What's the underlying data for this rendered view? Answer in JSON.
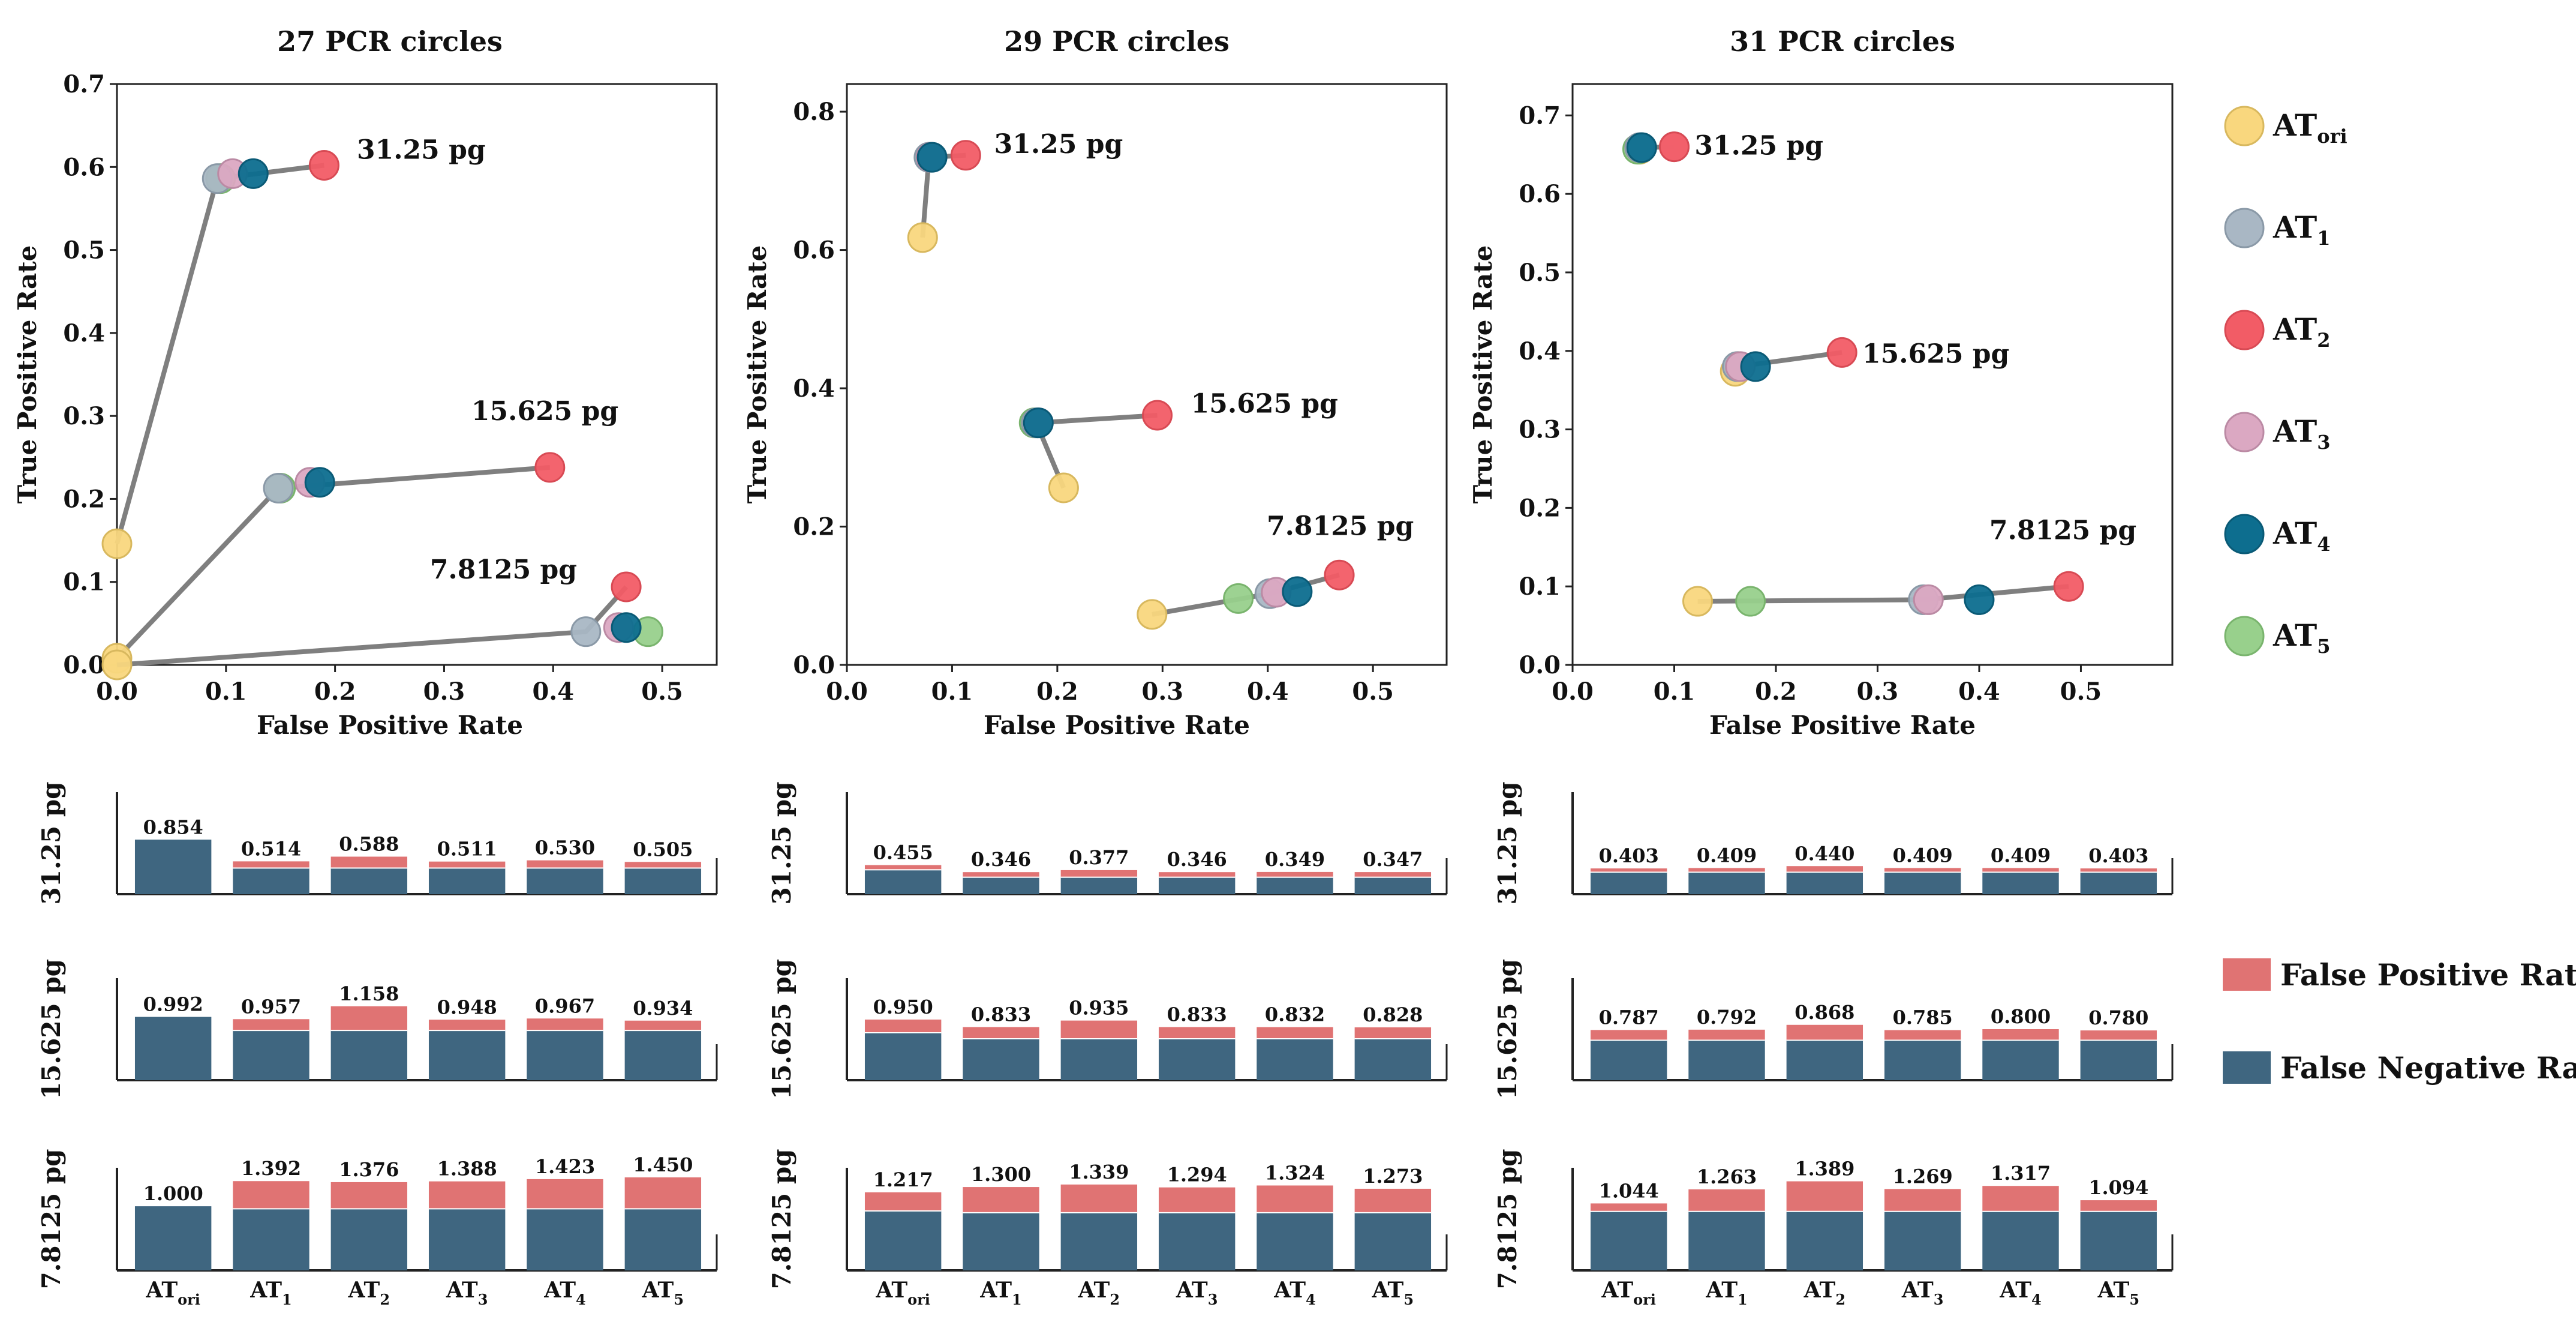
{
  "chart_data": {
    "type": "scatter",
    "legend": {
      "items": [
        {
          "main": "AT",
          "sub": "ori",
          "color": "#f9d77e",
          "stroke": "#d8b85e"
        },
        {
          "main": "AT",
          "sub": "1",
          "color": "#a9b7c4",
          "stroke": "#8a99a7"
        },
        {
          "main": "AT",
          "sub": "2",
          "color": "#f25c66",
          "stroke": "#d84a54"
        },
        {
          "main": "AT",
          "sub": "3",
          "color": "#dba8c2",
          "stroke": "#bb8aa4"
        },
        {
          "main": "AT",
          "sub": "4",
          "color": "#0d6e8f",
          "stroke": "#0a5a76"
        },
        {
          "main": "AT",
          "sub": "5",
          "color": "#98d08c",
          "stroke": "#79b46d"
        }
      ],
      "bar_items": [
        {
          "label": "False Positive Rate",
          "color": "#e07373"
        },
        {
          "label": "False Negative Rate",
          "color": "#3f6680"
        }
      ]
    },
    "bar_categories": [
      {
        "main": "AT",
        "sub": "ori"
      },
      {
        "main": "AT",
        "sub": "1"
      },
      {
        "main": "AT",
        "sub": "2"
      },
      {
        "main": "AT",
        "sub": "3"
      },
      {
        "main": "AT",
        "sub": "4"
      },
      {
        "main": "AT",
        "sub": "5"
      }
    ],
    "bar_row_labels": [
      "31.25 pg",
      "15.625 pg",
      "7.8125 pg"
    ],
    "bar_ylim": [
      0,
      1.6
    ],
    "panels": [
      {
        "title": "27 PCR circles",
        "xlabel": "False Positive Rate",
        "ylabel": "True Positive Rate",
        "xlim": [
          0,
          0.55
        ],
        "ylim": [
          0,
          0.7
        ],
        "xticks": [
          "0.0",
          "0.1",
          "0.2",
          "0.3",
          "0.4",
          "0.5"
        ],
        "yticks": [
          "0.0",
          "0.1",
          "0.2",
          "0.3",
          "0.4",
          "0.5",
          "0.6",
          "0.7"
        ],
        "groups": [
          {
            "label": "31.25 pg",
            "label_at": [
              0.22,
              0.61
            ],
            "points": [
              [
                0.0,
                0.146
              ],
              [
                0.092,
                0.586
              ],
              [
                0.106,
                0.592
              ],
              [
                0.1,
                0.592
              ],
              [
                0.125,
                0.592
              ],
              [
                0.095,
                0.586
              ],
              [
                0.19,
                0.602
              ]
            ]
          },
          {
            "label": "15.625 pg",
            "label_at": [
              0.325,
              0.295
            ],
            "points": [
              [
                0.0,
                0.008
              ],
              [
                0.148,
                0.213
              ],
              [
                0.177,
                0.22
              ],
              [
                0.17,
                0.22
              ],
              [
                0.186,
                0.22
              ],
              [
                0.15,
                0.213
              ],
              [
                0.397,
                0.238
              ]
            ]
          },
          {
            "label": "7.8125 pg",
            "label_at": [
              0.287,
              0.104
            ],
            "points": [
              [
                0.0,
                0.0
              ],
              [
                0.43,
                0.04
              ],
              [
                0.46,
                0.045
              ],
              [
                0.433,
                0.04
              ],
              [
                0.467,
                0.045
              ],
              [
                0.487,
                0.04
              ],
              [
                0.467,
                0.094
              ]
            ]
          }
        ]
      },
      {
        "title": "29 PCR circles",
        "xlabel": "False Positive Rate",
        "ylabel": "True Positive Rate",
        "xlim": [
          0,
          0.57
        ],
        "ylim": [
          0,
          0.84
        ],
        "xticks": [
          "0.0",
          "0.1",
          "0.2",
          "0.3",
          "0.4",
          "0.5"
        ],
        "yticks": [
          "0.0",
          "0.2",
          "0.4",
          "0.6",
          "0.8"
        ],
        "groups": [
          {
            "label": "31.25 pg",
            "label_at": [
              0.14,
              0.74
            ],
            "points": [
              [
                0.072,
                0.618
              ],
              [
                0.078,
                0.734
              ],
              [
                0.08,
                0.734
              ],
              [
                0.08,
                0.734
              ],
              [
                0.081,
                0.734
              ],
              [
                0.079,
                0.734
              ],
              [
                0.113,
                0.737
              ]
            ]
          },
          {
            "label": "15.625 pg",
            "label_at": [
              0.327,
              0.365
            ],
            "points": [
              [
                0.206,
                0.256
              ],
              [
                0.18,
                0.35
              ],
              [
                0.182,
                0.35
              ],
              [
                0.18,
                0.35
              ],
              [
                0.182,
                0.35
              ],
              [
                0.178,
                0.35
              ],
              [
                0.295,
                0.361
              ]
            ]
          },
          {
            "label": "7.8125 pg",
            "label_at": [
              0.399,
              0.188
            ],
            "points": [
              [
                0.29,
                0.073
              ],
              [
                0.402,
                0.103
              ],
              [
                0.408,
                0.105
              ],
              [
                0.402,
                0.103
              ],
              [
                0.428,
                0.106
              ],
              [
                0.372,
                0.096
              ],
              [
                0.468,
                0.13
              ]
            ]
          }
        ]
      },
      {
        "title": "31 PCR circles",
        "xlabel": "False Positive Rate",
        "ylabel": "True Positive Rate",
        "xlim": [
          0,
          0.59
        ],
        "ylim": [
          0,
          0.74
        ],
        "xticks": [
          "0.0",
          "0.1",
          "0.2",
          "0.3",
          "0.4",
          "0.5"
        ],
        "yticks": [
          "0.0",
          "0.1",
          "0.2",
          "0.3",
          "0.4",
          "0.5",
          "0.6",
          "0.7"
        ],
        "groups": [
          {
            "label": "31.25 pg",
            "label_at": [
              0.12,
              0.65
            ],
            "points": [
              [
                0.066,
                0.657
              ],
              [
                0.066,
                0.659
              ],
              [
                0.1,
                0.66
              ],
              [
                0.066,
                0.659
              ],
              [
                0.068,
                0.659
              ],
              [
                0.064,
                0.657
              ],
              [
                0.1,
                0.66
              ]
            ]
          },
          {
            "label": "15.625 pg",
            "label_at": [
              0.285,
              0.385
            ],
            "points": [
              [
                0.16,
                0.374
              ],
              [
                0.162,
                0.38
              ],
              [
                0.165,
                0.38
              ],
              [
                0.164,
                0.38
              ],
              [
                0.18,
                0.38
              ],
              [
                0.163,
                0.38
              ],
              [
                0.265,
                0.398
              ]
            ]
          },
          {
            "label": "7.8125 pg",
            "label_at": [
              0.41,
              0.16
            ],
            "points": [
              [
                0.123,
                0.081
              ],
              [
                0.345,
                0.083
              ],
              [
                0.35,
                0.083
              ],
              [
                0.348,
                0.083
              ],
              [
                0.4,
                0.083
              ],
              [
                0.175,
                0.081
              ],
              [
                0.488,
                0.1
              ]
            ]
          }
        ]
      }
    ],
    "bars": [
      [
        {
          "labels": [
            "0.854",
            "0.514",
            "0.588",
            "0.511",
            "0.530",
            "0.505"
          ],
          "fnr": [
            0.854,
            0.41,
            0.41,
            0.41,
            0.41,
            0.41
          ],
          "fpr": [
            0.0,
            0.104,
            0.178,
            0.101,
            0.12,
            0.095
          ]
        },
        {
          "labels": [
            "0.992",
            "0.957",
            "1.158",
            "0.948",
            "0.967",
            "0.934"
          ],
          "fnr": [
            0.992,
            0.78,
            0.78,
            0.78,
            0.78,
            0.78
          ],
          "fpr": [
            0.0,
            0.177,
            0.378,
            0.168,
            0.187,
            0.154
          ]
        },
        {
          "labels": [
            "1.000",
            "1.392",
            "1.376",
            "1.388",
            "1.423",
            "1.450"
          ],
          "fnr": [
            1.0,
            0.96,
            0.96,
            0.96,
            0.96,
            0.96
          ],
          "fpr": [
            0.0,
            0.432,
            0.416,
            0.428,
            0.463,
            0.49
          ]
        }
      ],
      [
        {
          "labels": [
            "0.455",
            "0.346",
            "0.377",
            "0.346",
            "0.349",
            "0.347"
          ],
          "fnr": [
            0.382,
            0.266,
            0.266,
            0.266,
            0.266,
            0.266
          ],
          "fpr": [
            0.073,
            0.08,
            0.111,
            0.08,
            0.083,
            0.081
          ]
        },
        {
          "labels": [
            "0.950",
            "0.833",
            "0.935",
            "0.833",
            "0.832",
            "0.828"
          ],
          "fnr": [
            0.744,
            0.65,
            0.65,
            0.65,
            0.65,
            0.65
          ],
          "fpr": [
            0.206,
            0.183,
            0.285,
            0.183,
            0.182,
            0.178
          ]
        },
        {
          "labels": [
            "1.217",
            "1.300",
            "1.339",
            "1.294",
            "1.324",
            "1.273"
          ],
          "fnr": [
            0.927,
            0.9,
            0.9,
            0.9,
            0.9,
            0.9
          ],
          "fpr": [
            0.29,
            0.4,
            0.439,
            0.394,
            0.424,
            0.373
          ]
        }
      ],
      [
        {
          "labels": [
            "0.403",
            "0.409",
            "0.440",
            "0.409",
            "0.409",
            "0.403"
          ],
          "fnr": [
            0.343,
            0.343,
            0.343,
            0.343,
            0.343,
            0.343
          ],
          "fpr": [
            0.06,
            0.066,
            0.097,
            0.066,
            0.066,
            0.06
          ]
        },
        {
          "labels": [
            "0.787",
            "0.792",
            "0.868",
            "0.785",
            "0.800",
            "0.780"
          ],
          "fnr": [
            0.626,
            0.626,
            0.626,
            0.626,
            0.626,
            0.626
          ],
          "fpr": [
            0.161,
            0.166,
            0.242,
            0.159,
            0.174,
            0.154
          ]
        },
        {
          "labels": [
            "1.044",
            "1.263",
            "1.389",
            "1.269",
            "1.317",
            "1.094"
          ],
          "fnr": [
            0.919,
            0.919,
            0.919,
            0.919,
            0.919,
            0.919
          ],
          "fpr": [
            0.125,
            0.344,
            0.47,
            0.35,
            0.398,
            0.175
          ]
        }
      ]
    ]
  }
}
